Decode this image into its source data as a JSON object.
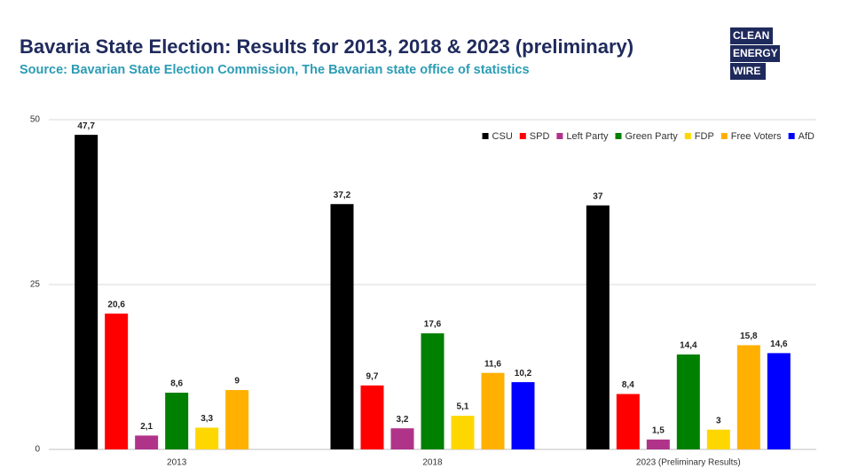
{
  "chart_data": {
    "type": "bar",
    "title": "Bavaria State Election: Results for 2013, 2018 & 2023 (preliminary)",
    "subtitle": "Source: Bavarian State Election Commission, The Bavarian state office of statistics",
    "categories": [
      "2013",
      "2018",
      "2023 (Preliminary Results)"
    ],
    "series": [
      {
        "name": "CSU",
        "color": "#000000",
        "values": [
          47.7,
          37.2,
          37
        ],
        "value_labels": [
          "47,7",
          "37,2",
          "37"
        ]
      },
      {
        "name": "SPD",
        "color": "#ff0000",
        "values": [
          20.6,
          9.7,
          8.4
        ],
        "value_labels": [
          "20,6",
          "9,7",
          "8,4"
        ]
      },
      {
        "name": "Left Party",
        "color": "#b0338a",
        "values": [
          2.1,
          3.2,
          1.5
        ],
        "value_labels": [
          "2,1",
          "3,2",
          "1,5"
        ]
      },
      {
        "name": "Green Party",
        "color": "#008000",
        "values": [
          8.6,
          17.6,
          14.4
        ],
        "value_labels": [
          "8,6",
          "17,6",
          "14,4"
        ]
      },
      {
        "name": "FDP",
        "color": "#ffd700",
        "values": [
          3.3,
          5.1,
          3
        ],
        "value_labels": [
          "3,3",
          "5,1",
          "3"
        ]
      },
      {
        "name": "Free Voters",
        "color": "#ffb000",
        "values": [
          9,
          11.6,
          15.8
        ],
        "value_labels": [
          "9",
          "11,6",
          "15,8"
        ]
      },
      {
        "name": "AfD",
        "color": "#0000ff",
        "values": [
          null,
          10.2,
          14.6
        ],
        "value_labels": [
          null,
          "10,2",
          "14,6"
        ]
      }
    ],
    "ylim": [
      0,
      50
    ],
    "yticks": [
      0,
      25,
      50
    ],
    "grid": true,
    "legend": "top-right"
  },
  "logo": [
    "CLEAN",
    "ENERGY",
    "WIRE"
  ]
}
